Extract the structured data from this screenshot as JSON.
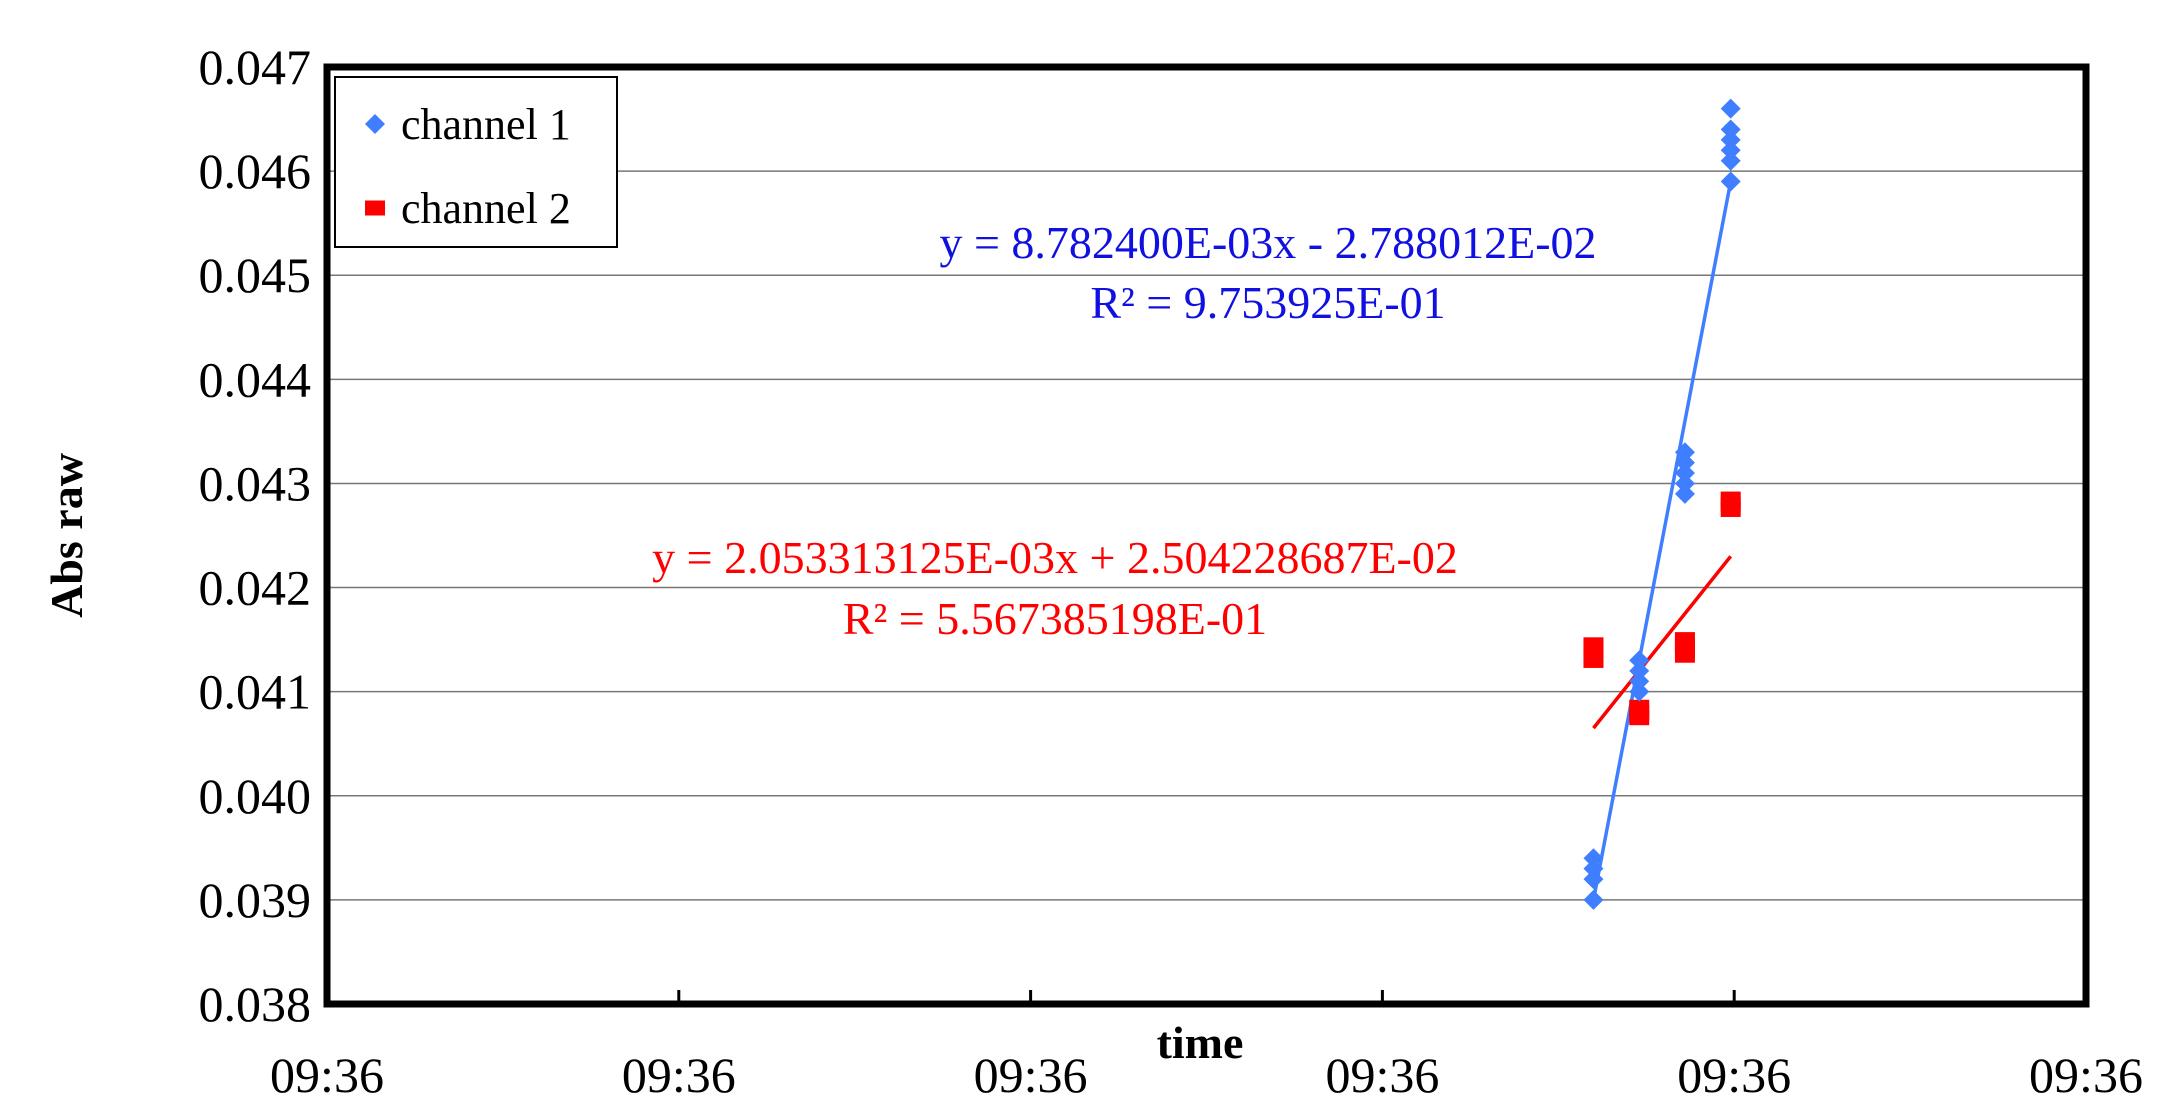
{
  "chart_data": {
    "type": "scatter",
    "title": "",
    "xlabel": "time",
    "ylabel": "Abs raw",
    "ylim": [
      0.038,
      0.047
    ],
    "yticks": [
      "0.038",
      "0.039",
      "0.040",
      "0.041",
      "0.042",
      "0.043",
      "0.044",
      "0.045",
      "0.046",
      "0.047"
    ],
    "xlim": [
      0,
      5
    ],
    "xticks": [
      0,
      1,
      2,
      3,
      4,
      5
    ],
    "xtick_labels": [
      "09:36",
      "09:36",
      "09:36",
      "09:36",
      "09:36",
      "09:36"
    ],
    "grid": "horizontal",
    "legend_position": "top-left",
    "series": [
      {
        "name": "channel 1",
        "color": "#3F7FFF",
        "marker": "diamond",
        "points": [
          {
            "x": 3.6,
            "y": 0.039
          },
          {
            "x": 3.6,
            "y": 0.0392
          },
          {
            "x": 3.6,
            "y": 0.0393
          },
          {
            "x": 3.6,
            "y": 0.0394
          },
          {
            "x": 3.73,
            "y": 0.041
          },
          {
            "x": 3.73,
            "y": 0.0411
          },
          {
            "x": 3.73,
            "y": 0.0412
          },
          {
            "x": 3.73,
            "y": 0.0413
          },
          {
            "x": 3.86,
            "y": 0.0429
          },
          {
            "x": 3.86,
            "y": 0.043
          },
          {
            "x": 3.86,
            "y": 0.0431
          },
          {
            "x": 3.86,
            "y": 0.0432
          },
          {
            "x": 3.86,
            "y": 0.0433
          },
          {
            "x": 3.99,
            "y": 0.0459
          },
          {
            "x": 3.99,
            "y": 0.0461
          },
          {
            "x": 3.99,
            "y": 0.0462
          },
          {
            "x": 3.99,
            "y": 0.0463
          },
          {
            "x": 3.99,
            "y": 0.0464
          },
          {
            "x": 3.99,
            "y": 0.0466
          }
        ],
        "trendline": {
          "from": {
            "x": 3.6,
            "y": 0.039
          },
          "to": {
            "x": 3.99,
            "y": 0.0459
          },
          "equation": "y = 8.782400E-03x - 2.788012E-02",
          "r_squared": "R² = 9.753925E-01"
        }
      },
      {
        "name": "channel 2",
        "color": "#FF0000",
        "marker": "square",
        "points": [
          {
            "x": 3.6,
            "y": 0.0413
          },
          {
            "x": 3.6,
            "y": 0.04135
          },
          {
            "x": 3.6,
            "y": 0.0414
          },
          {
            "x": 3.6,
            "y": 0.04145
          },
          {
            "x": 3.73,
            "y": 0.04075
          },
          {
            "x": 3.73,
            "y": 0.0408
          },
          {
            "x": 3.73,
            "y": 0.04085
          },
          {
            "x": 3.86,
            "y": 0.04135
          },
          {
            "x": 3.86,
            "y": 0.0414
          },
          {
            "x": 3.86,
            "y": 0.04145
          },
          {
            "x": 3.86,
            "y": 0.0415
          },
          {
            "x": 3.99,
            "y": 0.04275
          },
          {
            "x": 3.99,
            "y": 0.0428
          },
          {
            "x": 3.99,
            "y": 0.04285
          }
        ],
        "trendline": {
          "from": {
            "x": 3.6,
            "y": 0.04065
          },
          "to": {
            "x": 3.99,
            "y": 0.0423
          },
          "equation": "y = 2.053313125E-03x + 2.504228687E-02",
          "r_squared": "R² = 5.567385198E-01"
        }
      }
    ]
  }
}
